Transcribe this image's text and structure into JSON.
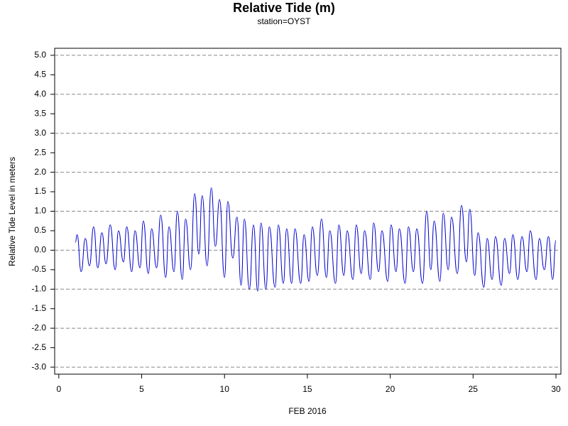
{
  "chart_data": {
    "type": "line",
    "title": "Relative Tide (m)",
    "subtitle": "station=OYST",
    "x_label": "FEB 2016",
    "y_label": "Relative Tide Level in meters",
    "xlim": [
      -0.25,
      30.3
    ],
    "ylim": [
      -3.18,
      5.18
    ],
    "xticks": [
      0,
      5,
      10,
      15,
      20,
      25,
      30
    ],
    "yticks": [
      {
        "value": -3,
        "label": "-3.0"
      },
      -2.5,
      {
        "value": -2,
        "label": "-2.0"
      },
      -1.5,
      {
        "value": -1,
        "label": "-1.0"
      },
      -0.5,
      {
        "value": 0,
        "label": "0.0"
      },
      0.5,
      {
        "value": 1,
        "label": "1.0"
      },
      1.5,
      {
        "value": 2,
        "label": "2.0"
      },
      2.5,
      {
        "value": 3,
        "label": "3.0"
      },
      3.5,
      {
        "value": 4,
        "label": "4.0"
      },
      4.5,
      {
        "value": 5,
        "label": "5.0"
      }
    ],
    "grid": true,
    "series": [
      {
        "name": "Relative Tide",
        "color": "#0000cc",
        "x": [
          1.0,
          1.1,
          1.35,
          1.6,
          1.85,
          2.1,
          2.35,
          2.6,
          2.85,
          3.1,
          3.4,
          3.6,
          3.9,
          4.1,
          4.4,
          4.6,
          4.9,
          5.1,
          5.4,
          5.6,
          5.9,
          6.15,
          6.45,
          6.65,
          6.95,
          7.15,
          7.45,
          7.65,
          7.95,
          8.2,
          8.45,
          8.65,
          8.95,
          9.2,
          9.45,
          9.7,
          10.0,
          10.2,
          10.5,
          10.75,
          11.0,
          11.2,
          11.5,
          11.75,
          12.0,
          12.2,
          12.5,
          12.7,
          13.05,
          13.25,
          13.55,
          13.75,
          14.05,
          14.25,
          14.6,
          14.8,
          15.1,
          15.3,
          15.6,
          15.85,
          16.15,
          16.35,
          16.7,
          16.9,
          17.2,
          17.4,
          17.75,
          17.95,
          18.25,
          18.45,
          18.8,
          19.0,
          19.3,
          19.5,
          19.85,
          20.05,
          20.35,
          20.55,
          20.9,
          21.1,
          21.4,
          21.6,
          21.95,
          22.2,
          22.45,
          22.65,
          23.0,
          23.2,
          23.5,
          23.7,
          24.05,
          24.3,
          24.6,
          24.8,
          25.1,
          25.3,
          25.65,
          25.85,
          26.15,
          26.35,
          26.7,
          26.9,
          27.2,
          27.4,
          27.7,
          27.95,
          28.25,
          28.45,
          28.8,
          29.0,
          29.3,
          29.55,
          29.8,
          30.0
        ],
        "values": [
          0.2,
          0.4,
          -0.55,
          0.3,
          -0.4,
          0.6,
          -0.45,
          0.45,
          -0.35,
          0.65,
          -0.5,
          0.5,
          -0.3,
          0.6,
          -0.55,
          0.5,
          -0.45,
          0.75,
          -0.6,
          0.55,
          -0.45,
          0.9,
          -0.7,
          0.6,
          -0.55,
          1.0,
          -0.75,
          0.8,
          -0.5,
          1.45,
          -0.1,
          1.4,
          -0.4,
          1.6,
          0.1,
          1.3,
          -0.7,
          1.25,
          -0.2,
          0.85,
          -0.9,
          0.8,
          -1.0,
          0.65,
          -1.05,
          0.7,
          -1.0,
          0.6,
          -0.95,
          0.65,
          -0.85,
          0.55,
          -0.85,
          0.55,
          -0.85,
          0.4,
          -0.8,
          0.6,
          -0.65,
          0.8,
          -0.7,
          0.5,
          -0.85,
          0.65,
          -0.65,
          0.5,
          -0.75,
          0.65,
          -0.6,
          0.5,
          -0.75,
          0.7,
          -0.55,
          0.5,
          -0.8,
          0.65,
          -0.55,
          0.55,
          -0.85,
          0.6,
          -0.55,
          0.55,
          -0.85,
          1.0,
          -0.5,
          0.75,
          -0.8,
          0.95,
          -0.5,
          0.85,
          -0.6,
          1.15,
          -0.3,
          1.05,
          -0.65,
          0.45,
          -0.95,
          0.3,
          -0.75,
          0.35,
          -0.9,
          0.3,
          -0.6,
          0.4,
          -0.75,
          0.35,
          -0.55,
          0.5,
          -0.75,
          0.3,
          -0.5,
          0.35,
          -0.75,
          0.25
        ]
      }
    ]
  }
}
